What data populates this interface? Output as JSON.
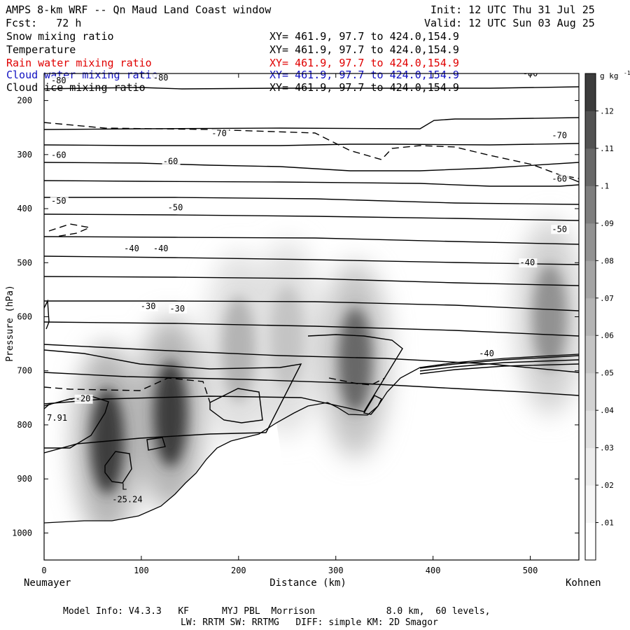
{
  "header": {
    "title": "AMPS 8-km WRF -- Qn Maud Land Coast window",
    "forecast": "Fcst:   72 h",
    "init": "Init: 12 UTC Thu 31 Jul 25",
    "valid": "Valid: 12 UTC Sun 03 Aug 25"
  },
  "fields": [
    {
      "name": "Snow mixing ratio",
      "xy": "XY= 461.9, 97.7 to 424.0,154.9",
      "color": "#000000"
    },
    {
      "name": "Temperature",
      "xy": "XY= 461.9, 97.7 to 424.0,154.9",
      "color": "#000000"
    },
    {
      "name": "Rain water mixing ratio",
      "xy": "XY= 461.9, 97.7 to 424.0,154.9",
      "color": "#e00000"
    },
    {
      "name": "Cloud water mixing ratio",
      "xy": "XY= 461.9, 97.7 to 424.0,154.9",
      "color": "#1010c0"
    },
    {
      "name": "Cloud ice mixing ratio",
      "xy": "XY= 461.9, 97.7 to 424.0,154.9",
      "color": "#000000"
    }
  ],
  "footer": {
    "line1": "Model Info: V4.3.3   KF      MYJ PBL  Morrison             8.0 km,  60 levels,",
    "line2": "LW: RRTM SW: RRTMG   DIFF: simple KM: 2D Smagor"
  },
  "chart_data": {
    "type": "heatmap",
    "title": "AMPS 8-km WRF -- Qn Maud Land Coast window",
    "xlabel": "Distance (km)",
    "ylabel": "Pressure (hPa)",
    "xlim": [
      0,
      550
    ],
    "ylim": [
      1050,
      150
    ],
    "x_ticks": [
      0,
      100,
      200,
      300,
      400,
      500
    ],
    "y_ticks": [
      200,
      300,
      400,
      500,
      600,
      700,
      800,
      900,
      1000
    ],
    "endpoint_left": "Neumayer",
    "endpoint_right": "Kohnen",
    "colorbar": {
      "units": "g kg",
      "units_exp": "-1",
      "levels": [
        ".01",
        ".02",
        ".03",
        ".04",
        ".05",
        ".06",
        ".07",
        ".08",
        ".09",
        ".1",
        ".11",
        ".12"
      ],
      "colors": [
        "#ffffff",
        "#f6f6f6",
        "#ececec",
        "#e0e0e0",
        "#d2d2d2",
        "#c4c4c4",
        "#b4b4b4",
        "#a4a4a4",
        "#929292",
        "#7e7e7e",
        "#686868",
        "#525252",
        "#3c3c3c"
      ]
    },
    "snow_maxima": [
      {
        "x": 65,
        "p": 830,
        "value": 0.12
      },
      {
        "x": 130,
        "p": 780,
        "value": 0.12
      },
      {
        "x": 200,
        "p": 660,
        "value": 0.06
      },
      {
        "x": 250,
        "p": 640,
        "value": 0.05
      },
      {
        "x": 320,
        "p": 680,
        "value": 0.1
      },
      {
        "x": 520,
        "p": 600,
        "value": 0.08
      }
    ],
    "contour_labels": [
      {
        "text": "-80",
        "x": 15,
        "p": 168
      },
      {
        "text": "-80",
        "x": 120,
        "p": 163
      },
      {
        "text": "-80",
        "x": 500,
        "p": 155
      },
      {
        "text": "-70",
        "x": 180,
        "p": 266
      },
      {
        "text": "-70",
        "x": 530,
        "p": 270
      },
      {
        "text": "-60",
        "x": 15,
        "p": 306
      },
      {
        "text": "-60",
        "x": 130,
        "p": 318
      },
      {
        "text": "-60",
        "x": 530,
        "p": 350
      },
      {
        "text": "-50",
        "x": 15,
        "p": 391
      },
      {
        "text": "-50",
        "x": 135,
        "p": 403
      },
      {
        "text": "-50",
        "x": 530,
        "p": 443
      },
      {
        "text": "-40",
        "x": 90,
        "p": 479
      },
      {
        "text": "-40",
        "x": 120,
        "p": 479
      },
      {
        "text": "-40",
        "x": 497,
        "p": 505
      },
      {
        "text": "-40",
        "x": 455,
        "p": 673
      },
      {
        "text": "-30",
        "x": 107,
        "p": 586
      },
      {
        "text": "-30",
        "x": 137,
        "p": 590
      },
      {
        "text": "-20",
        "x": 40,
        "p": 757
      }
    ],
    "extrema": [
      {
        "text": "7.91",
        "x": 3,
        "p": 792
      },
      {
        "text": "L",
        "x": 80,
        "p": 920
      },
      {
        "text": "-25.24",
        "x": 70,
        "p": 943
      }
    ]
  }
}
